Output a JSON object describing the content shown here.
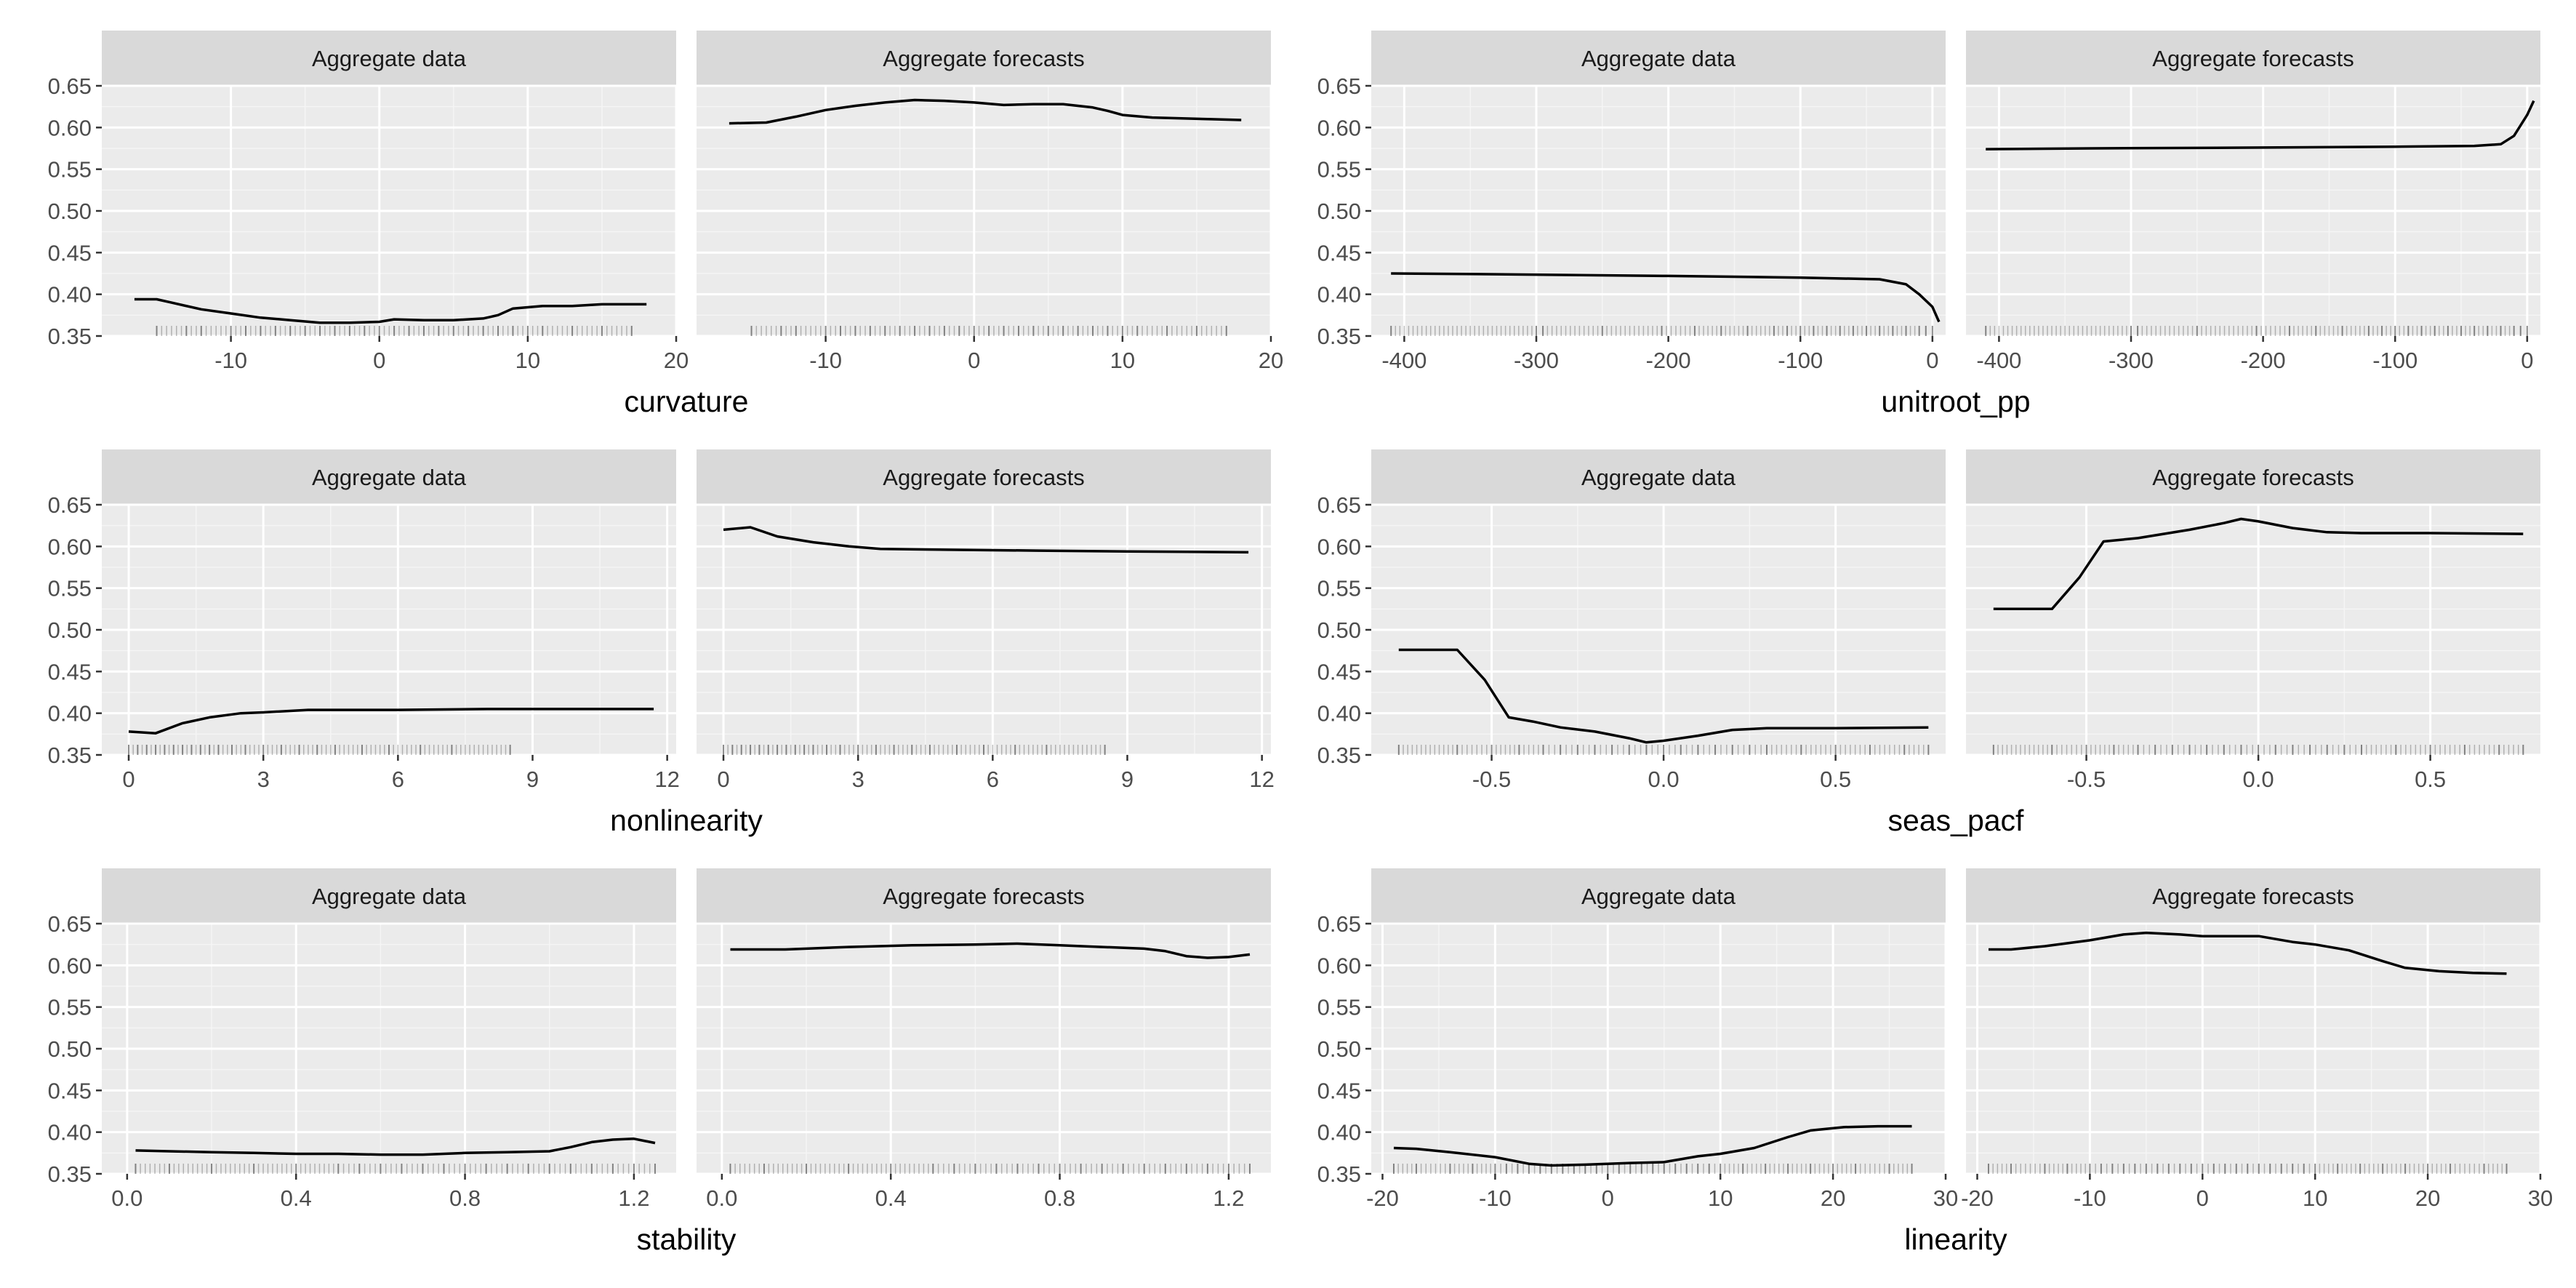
{
  "chart_data": [
    {
      "type": "line",
      "xlabel": "curvature",
      "ylim": [
        0.35,
        0.65
      ],
      "yticks": [
        "0.35",
        "0.40",
        "0.45",
        "0.50",
        "0.55",
        "0.60",
        "0.65"
      ],
      "xlim": [
        -18.7,
        20
      ],
      "xticks": [
        {
          "v": -10,
          "label": "-10"
        },
        {
          "v": 0,
          "label": "0"
        },
        {
          "v": 10,
          "label": "10"
        },
        {
          "v": 20,
          "label": "20"
        }
      ],
      "panels": [
        {
          "strip": "Aggregate data",
          "series": {
            "x": [
              -16.5,
              -15,
              -14,
              -12,
              -10,
              -8,
              -6,
              -4,
              -2,
              0,
              1,
              3,
              5,
              7,
              8,
              9,
              11,
              13,
              15,
              18
            ],
            "y": [
              0.394,
              0.394,
              0.39,
              0.382,
              0.377,
              0.372,
              0.369,
              0.366,
              0.366,
              0.367,
              0.37,
              0.369,
              0.369,
              0.371,
              0.375,
              0.383,
              0.386,
              0.386,
              0.388,
              0.388
            ]
          }
        },
        {
          "strip": "Aggregate forecasts",
          "series": {
            "x": [
              -16.5,
              -14,
              -12,
              -10,
              -8,
              -6,
              -4,
              -2,
              0,
              2,
              4,
              6,
              8,
              9,
              10,
              12,
              14,
              16,
              18
            ],
            "y": [
              0.605,
              0.606,
              0.613,
              0.621,
              0.626,
              0.63,
              0.633,
              0.632,
              0.63,
              0.627,
              0.628,
              0.628,
              0.624,
              0.62,
              0.615,
              0.612,
              0.611,
              0.61,
              0.609
            ]
          }
        }
      ],
      "rug": [
        -15,
        -13,
        -12,
        -10,
        -9,
        -8,
        -7,
        -6,
        -5,
        -4,
        -3,
        -2,
        -1,
        0,
        1,
        2,
        3,
        4,
        5,
        6,
        7,
        8,
        9,
        10,
        11,
        13,
        15,
        17
      ]
    },
    {
      "type": "line",
      "xlabel": "unitroot_pp",
      "ylim": [
        0.35,
        0.65
      ],
      "yticks": [
        "0.35",
        "0.40",
        "0.45",
        "0.50",
        "0.55",
        "0.60",
        "0.65"
      ],
      "xlim": [
        -425,
        10
      ],
      "xticks": [
        {
          "v": -400,
          "label": "-400"
        },
        {
          "v": -300,
          "label": "-300"
        },
        {
          "v": -200,
          "label": "-200"
        },
        {
          "v": -100,
          "label": "-100"
        },
        {
          "v": 0,
          "label": "0"
        }
      ],
      "panels": [
        {
          "strip": "Aggregate data",
          "series": {
            "x": [
              -410,
              -330,
              -200,
              -100,
              -40,
              -20,
              -10,
              0,
              5
            ],
            "y": [
              0.425,
              0.424,
              0.422,
              0.42,
              0.418,
              0.412,
              0.4,
              0.385,
              0.367
            ]
          }
        },
        {
          "strip": "Aggregate forecasts",
          "series": {
            "x": [
              -410,
              -330,
              -200,
              -100,
              -40,
              -20,
              -10,
              0,
              5
            ],
            "y": [
              0.574,
              0.575,
              0.576,
              0.577,
              0.578,
              0.58,
              0.59,
              0.615,
              0.632
            ]
          }
        }
      ],
      "rug": [
        -410,
        -300,
        -295,
        -250,
        -205,
        -180,
        -160,
        -140,
        -120,
        -110,
        -100,
        -90,
        -80,
        -70,
        -60,
        -50,
        -40,
        -30,
        -20,
        -10,
        -5,
        0
      ]
    },
    {
      "type": "line",
      "xlabel": "nonlinearity",
      "ylim": [
        0.35,
        0.65
      ],
      "yticks": [
        "0.35",
        "0.40",
        "0.45",
        "0.50",
        "0.55",
        "0.60",
        "0.65"
      ],
      "xlim": [
        -0.6,
        12.2
      ],
      "xticks": [
        {
          "v": 0,
          "label": "0"
        },
        {
          "v": 3,
          "label": "3"
        },
        {
          "v": 6,
          "label": "6"
        },
        {
          "v": 9,
          "label": "9"
        },
        {
          "v": 12,
          "label": "12"
        }
      ],
      "panels": [
        {
          "strip": "Aggregate data",
          "series": {
            "x": [
              0,
              0.6,
              1.2,
              1.8,
              2.5,
              3,
              4,
              5,
              6,
              8,
              10,
              11.7
            ],
            "y": [
              0.378,
              0.376,
              0.388,
              0.395,
              0.4,
              0.401,
              0.404,
              0.404,
              0.404,
              0.405,
              0.405,
              0.405
            ]
          }
        },
        {
          "strip": "Aggregate forecasts",
          "series": {
            "x": [
              0,
              0.6,
              1.2,
              2,
              2.8,
              3.5,
              5,
              7,
              9,
              11.7
            ],
            "y": [
              0.62,
              0.623,
              0.612,
              0.605,
              0.6,
              0.597,
              0.596,
              0.595,
              0.594,
              0.593
            ]
          }
        }
      ],
      "rug": [
        0,
        0.2,
        0.4,
        0.6,
        0.8,
        1.0,
        1.2,
        1.4,
        1.6,
        1.8,
        2.0,
        2.3,
        2.6,
        3.0,
        3.4,
        3.8,
        4.2,
        4.6,
        5.2,
        5.8,
        6.5,
        7.2,
        8.5
      ]
    },
    {
      "type": "line",
      "xlabel": "seas_pacf",
      "ylim": [
        0.35,
        0.65
      ],
      "yticks": [
        "0.35",
        "0.40",
        "0.45",
        "0.50",
        "0.55",
        "0.60",
        "0.65"
      ],
      "xlim": [
        -0.85,
        0.82
      ],
      "xticks": [
        {
          "v": -0.5,
          "label": "-0.5"
        },
        {
          "v": 0,
          "label": "0.0"
        },
        {
          "v": 0.5,
          "label": "0.5"
        }
      ],
      "panels": [
        {
          "strip": "Aggregate data",
          "series": {
            "x": [
              -0.77,
              -0.6,
              -0.52,
              -0.45,
              -0.38,
              -0.3,
              -0.2,
              -0.1,
              -0.05,
              0,
              0.1,
              0.2,
              0.3,
              0.5,
              0.77
            ],
            "y": [
              0.476,
              0.476,
              0.44,
              0.395,
              0.39,
              0.383,
              0.378,
              0.37,
              0.365,
              0.367,
              0.373,
              0.38,
              0.382,
              0.382,
              0.383
            ]
          }
        },
        {
          "strip": "Aggregate forecasts",
          "series": {
            "x": [
              -0.77,
              -0.6,
              -0.52,
              -0.45,
              -0.35,
              -0.2,
              -0.1,
              -0.05,
              0,
              0.1,
              0.2,
              0.3,
              0.5,
              0.77
            ],
            "y": [
              0.525,
              0.525,
              0.563,
              0.606,
              0.61,
              0.62,
              0.628,
              0.633,
              0.63,
              0.622,
              0.617,
              0.616,
              0.616,
              0.615
            ]
          }
        }
      ],
      "rug": [
        -0.77,
        -0.6,
        -0.5,
        -0.42,
        -0.35,
        -0.3,
        -0.25,
        -0.2,
        -0.15,
        -0.1,
        -0.05,
        0,
        0.05,
        0.1,
        0.15,
        0.2,
        0.25,
        0.3,
        0.4,
        0.5,
        0.6,
        0.7,
        0.77
      ]
    },
    {
      "type": "line",
      "xlabel": "stability",
      "ylim": [
        0.35,
        0.65
      ],
      "yticks": [
        "0.35",
        "0.40",
        "0.45",
        "0.50",
        "0.55",
        "0.60",
        "0.65"
      ],
      "xlim": [
        -0.06,
        1.3
      ],
      "xticks": [
        {
          "v": 0,
          "label": "0.0"
        },
        {
          "v": 0.4,
          "label": "0.4"
        },
        {
          "v": 0.8,
          "label": "0.8"
        },
        {
          "v": 1.2,
          "label": "1.2"
        }
      ],
      "panels": [
        {
          "strip": "Aggregate data",
          "series": {
            "x": [
              0.02,
              0.1,
              0.2,
              0.3,
              0.4,
              0.5,
              0.6,
              0.7,
              0.8,
              0.9,
              1.0,
              1.05,
              1.1,
              1.15,
              1.2,
              1.25
            ],
            "y": [
              0.378,
              0.377,
              0.376,
              0.375,
              0.374,
              0.374,
              0.373,
              0.373,
              0.375,
              0.376,
              0.377,
              0.382,
              0.388,
              0.391,
              0.392,
              0.387
            ]
          }
        },
        {
          "strip": "Aggregate forecasts",
          "series": {
            "x": [
              0.02,
              0.15,
              0.3,
              0.45,
              0.6,
              0.7,
              0.8,
              0.9,
              1.0,
              1.05,
              1.1,
              1.15,
              1.2,
              1.25
            ],
            "y": [
              0.619,
              0.619,
              0.622,
              0.624,
              0.625,
              0.626,
              0.624,
              0.622,
              0.62,
              0.617,
              0.611,
              0.609,
              0.61,
              0.613
            ]
          }
        }
      ],
      "rug": [
        0.02,
        0.1,
        0.2,
        0.3,
        0.4,
        0.5,
        0.55,
        0.6,
        0.65,
        0.7,
        0.75,
        0.8,
        0.85,
        0.9,
        0.95,
        1.0,
        1.05,
        1.1,
        1.15,
        1.2,
        1.25
      ]
    },
    {
      "type": "line",
      "xlabel": "linearity",
      "ylim": [
        0.35,
        0.65
      ],
      "yticks": [
        "0.35",
        "0.40",
        "0.45",
        "0.50",
        "0.55",
        "0.60",
        "0.65"
      ],
      "xlim": [
        -21,
        30
      ],
      "xticks": [
        {
          "v": -20,
          "label": "-20"
        },
        {
          "v": -10,
          "label": "-10"
        },
        {
          "v": 0,
          "label": "0"
        },
        {
          "v": 10,
          "label": "10"
        },
        {
          "v": 20,
          "label": "20"
        },
        {
          "v": 30,
          "label": "30"
        }
      ],
      "panels": [
        {
          "strip": "Aggregate data",
          "series": {
            "x": [
              -19,
              -17,
              -14,
              -10,
              -7,
              -5,
              -2,
              0,
              2,
              5,
              8,
              10,
              13,
              16,
              18,
              21,
              24,
              27
            ],
            "y": [
              0.381,
              0.38,
              0.376,
              0.37,
              0.362,
              0.36,
              0.361,
              0.362,
              0.363,
              0.364,
              0.371,
              0.374,
              0.381,
              0.394,
              0.402,
              0.406,
              0.407,
              0.407
            ]
          }
        },
        {
          "strip": "Aggregate forecasts",
          "series": {
            "x": [
              -19,
              -17,
              -14,
              -10,
              -7,
              -5,
              -2,
              0,
              2,
              5,
              8,
              10,
              13,
              16,
              18,
              21,
              24,
              27
            ],
            "y": [
              0.619,
              0.619,
              0.623,
              0.63,
              0.637,
              0.639,
              0.637,
              0.635,
              0.635,
              0.635,
              0.628,
              0.625,
              0.618,
              0.605,
              0.597,
              0.593,
              0.591,
              0.59
            ]
          }
        }
      ],
      "rug": [
        -19,
        -17,
        -14,
        -12,
        -10,
        -9,
        -8,
        -7,
        -6,
        -5,
        -4,
        -3,
        -2,
        -1,
        0,
        1,
        2,
        3,
        4,
        5,
        6,
        7,
        8,
        9,
        10,
        12,
        14,
        16,
        18,
        20,
        22,
        25,
        27
      ]
    }
  ]
}
